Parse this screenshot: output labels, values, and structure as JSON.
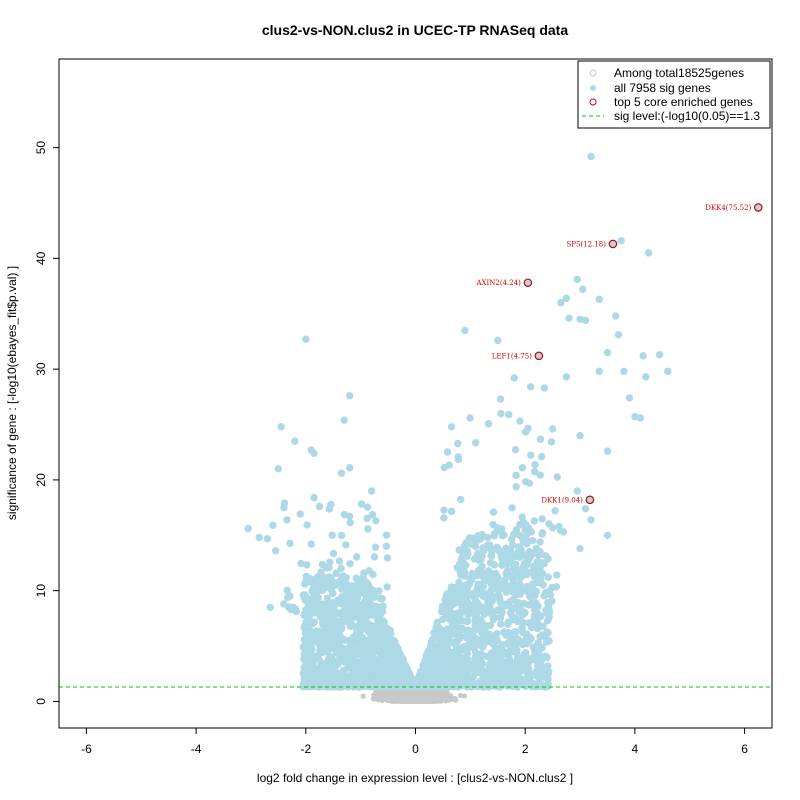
{
  "chart_data": {
    "type": "scatter",
    "title": "clus2-vs-NON.clus2 in UCEC-TP RNASeq data",
    "xlabel": "log2 fold change in expression level : [clus2-vs-NON.clus2 ]",
    "ylabel": "significance of gene : [-log10(ebayes_fit$p.val) ]",
    "xlim": [
      -6.5,
      6.5
    ],
    "ylim": [
      -2.4,
      58
    ],
    "x_ticks": [
      -6,
      -4,
      -2,
      0,
      2,
      4,
      6
    ],
    "y_ticks": [
      0,
      10,
      20,
      30,
      40,
      50
    ],
    "threshold": 1.3,
    "colors": {
      "background_genes": "#c8c8c8",
      "sig_genes": "#add8e6",
      "top_genes": "#cc0000",
      "threshold_line": "#00cc00"
    },
    "legend": {
      "placement": "top-right",
      "entries": [
        {
          "label": "Among total18525genes",
          "marker": "open-circle",
          "color": "#c8c8c8"
        },
        {
          "label": "all 7958 sig genes",
          "marker": "filled-circle",
          "color": "#add8e6"
        },
        {
          "label": "top 5 core enriched genes",
          "marker": "open-circle",
          "color": "#cc0000"
        },
        {
          "label": "sig level:(-log10(0.05)==1.3",
          "marker": "dashed-line",
          "color": "#00cc00"
        }
      ]
    },
    "top_genes": [
      {
        "label": "DKK4(75.52)",
        "x": 6.25,
        "y": 44.6
      },
      {
        "label": "SP5(12.18)",
        "x": 3.6,
        "y": 41.3
      },
      {
        "label": "AXIN2(4.24)",
        "x": 2.05,
        "y": 37.8
      },
      {
        "label": "LEF1(4.75)",
        "x": 2.25,
        "y": 31.2
      },
      {
        "label": "DKK1(9.04)",
        "x": 3.18,
        "y": 18.2
      }
    ],
    "outlier_points": [
      [
        3.2,
        49.2
      ],
      [
        3.75,
        41.6
      ],
      [
        4.25,
        40.5
      ],
      [
        2.95,
        38.1
      ],
      [
        3.05,
        37.2
      ],
      [
        2.65,
        36.0
      ],
      [
        2.75,
        36.4
      ],
      [
        3.35,
        36.3
      ],
      [
        0.9,
        33.5
      ],
      [
        1.5,
        32.6
      ],
      [
        -2.0,
        32.7
      ],
      [
        3.65,
        34.8
      ],
      [
        3.7,
        33.1
      ],
      [
        3.0,
        34.5
      ],
      [
        3.1,
        34.4
      ],
      [
        2.8,
        34.6
      ],
      [
        4.15,
        31.2
      ],
      [
        4.45,
        31.3
      ],
      [
        4.6,
        29.8
      ],
      [
        4.2,
        29.3
      ],
      [
        3.8,
        29.8
      ],
      [
        3.5,
        31.5
      ],
      [
        2.75,
        29.3
      ],
      [
        3.35,
        29.8
      ],
      [
        -1.2,
        27.6
      ],
      [
        3.9,
        27.4
      ],
      [
        4.0,
        25.7
      ],
      [
        4.1,
        25.6
      ],
      [
        3.0,
        24.0
      ],
      [
        2.5,
        24.6
      ],
      [
        -2.45,
        24.8
      ],
      [
        -1.3,
        25.4
      ],
      [
        -2.2,
        23.5
      ],
      [
        -1.9,
        22.7
      ],
      [
        -1.85,
        22.4
      ],
      [
        -2.5,
        21.0
      ],
      [
        -1.2,
        21.1
      ],
      [
        -1.35,
        20.6
      ],
      [
        3.5,
        22.6
      ],
      [
        -3.05,
        15.6
      ],
      [
        -2.85,
        14.8
      ],
      [
        -2.7,
        14.7
      ],
      [
        -2.65,
        8.5
      ],
      [
        -2.4,
        8.8
      ],
      [
        3.0,
        13.8
      ],
      [
        3.5,
        15.0
      ],
      [
        3.2,
        16.4
      ],
      [
        2.25,
        3.8
      ],
      [
        2.0,
        4.4
      ],
      [
        -1.6,
        3.0
      ],
      [
        2.95,
        19.0
      ],
      [
        3.1,
        17.4
      ],
      [
        2.7,
        15.3
      ],
      [
        1.95,
        21.1
      ],
      [
        2.3,
        22.1
      ],
      [
        1.55,
        27.3
      ],
      [
        1.7,
        25.9
      ],
      [
        2.35,
        28.3
      ],
      [
        2.1,
        28.4
      ],
      [
        1.8,
        29.2
      ],
      [
        -2.55,
        13.6
      ],
      [
        -2.6,
        15.9
      ],
      [
        -1.85,
        18.4
      ],
      [
        -1.75,
        17.6
      ],
      [
        -0.8,
        19.0
      ]
    ]
  }
}
